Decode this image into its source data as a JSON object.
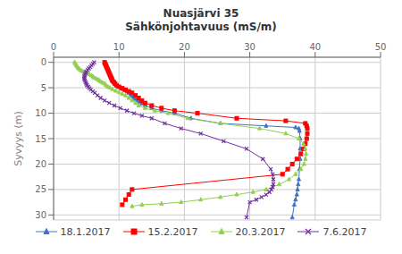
{
  "chart_data": {
    "type": "line",
    "title": "Nuasjärvi 35\nSähkönjohtavuus (mS/m)",
    "y_label": "Syvyys (m)",
    "xlim": [
      0,
      50
    ],
    "ylim": [
      31,
      -1
    ],
    "xticks": [
      0,
      10,
      20,
      30,
      40,
      50
    ],
    "yticks": [
      0,
      5,
      10,
      15,
      20,
      25,
      30
    ],
    "grid": true,
    "legend": "bottom",
    "series": [
      {
        "name": "18.1.2017",
        "color": "#4472C4",
        "marker": "triangle",
        "x": [
          7.8,
          7.9,
          8.0,
          8.1,
          8.2,
          8.3,
          8.4,
          8.5,
          8.6,
          8.7,
          8.8,
          8.9,
          9.0,
          9.2,
          9.4,
          9.6,
          9.9,
          10.3,
          10.7,
          11.2,
          11.5,
          11.8,
          12.0,
          12.2,
          12.5,
          12.8,
          13.1,
          13.5,
          14.0,
          15.0,
          16.5,
          18.5,
          21.0,
          25.5,
          32.5,
          37.0,
          37.5,
          37.6,
          37.7,
          37.7,
          37.7,
          37.6,
          37.5,
          37.4,
          37.3,
          37.2,
          37.0,
          36.8,
          36.5
        ],
        "values": [
          0.0,
          0.3,
          0.6,
          0.9,
          1.2,
          1.5,
          1.8,
          2.1,
          2.4,
          2.7,
          3.0,
          3.3,
          3.6,
          3.9,
          4.2,
          4.5,
          4.8,
          5.1,
          5.4,
          5.7,
          6.0,
          6.3,
          6.6,
          6.9,
          7.2,
          7.5,
          7.8,
          8.1,
          8.5,
          9.0,
          9.5,
          10.0,
          11.0,
          12.0,
          12.5,
          12.8,
          13.0,
          13.5,
          15.0,
          17.0,
          19.0,
          21.0,
          23.0,
          24.0,
          25.0,
          26.0,
          27.0,
          28.0,
          30.5
        ]
      },
      {
        "name": "15.2.2017",
        "color": "#FF0000",
        "marker": "square",
        "x": [
          7.8,
          7.9,
          8.0,
          8.1,
          8.2,
          8.3,
          8.4,
          8.5,
          8.6,
          8.7,
          8.8,
          8.9,
          9.0,
          9.2,
          9.4,
          9.6,
          10.0,
          10.5,
          11.0,
          11.5,
          12.0,
          12.5,
          13.0,
          13.5,
          14.0,
          15.0,
          16.5,
          18.5,
          22.0,
          28.0,
          35.5,
          38.5,
          38.7,
          38.8,
          38.8,
          38.7,
          38.5,
          38.2,
          37.8,
          37.2,
          36.5,
          35.8,
          35.0,
          12.0,
          11.5,
          11.0,
          10.5
        ],
        "values": [
          0.0,
          0.3,
          0.6,
          0.9,
          1.2,
          1.5,
          1.8,
          2.1,
          2.4,
          2.7,
          3.0,
          3.3,
          3.6,
          3.9,
          4.2,
          4.5,
          4.8,
          5.1,
          5.4,
          5.7,
          6.0,
          6.5,
          7.0,
          7.5,
          8.0,
          8.5,
          9.0,
          9.5,
          10.0,
          11.0,
          11.5,
          12.0,
          12.5,
          13.0,
          14.0,
          15.0,
          16.0,
          17.0,
          18.0,
          19.0,
          20.0,
          21.0,
          22.0,
          25.0,
          26.0,
          27.0,
          28.0
        ]
      },
      {
        "name": "20.3.2017",
        "color": "#92D050",
        "marker": "triangle",
        "x": [
          3.2,
          3.3,
          3.4,
          3.5,
          3.6,
          3.7,
          3.8,
          4.0,
          4.2,
          4.5,
          4.8,
          5.2,
          5.5,
          5.8,
          6.0,
          6.2,
          6.5,
          6.8,
          7.0,
          7.2,
          7.5,
          7.8,
          8.0,
          8.3,
          8.6,
          9.0,
          9.5,
          10.0,
          10.5,
          11.0,
          11.5,
          12.0,
          12.5,
          13.0,
          14.0,
          15.5,
          17.5,
          20.5,
          25.5,
          31.5,
          35.5,
          37.5,
          38.2,
          38.5,
          38.6,
          38.5,
          38.3,
          37.8,
          37.0,
          36.0,
          34.5,
          32.5,
          30.5,
          28.0,
          25.5,
          22.5,
          19.5,
          16.5,
          13.5,
          12.0
        ],
        "values": [
          0.0,
          0.2,
          0.4,
          0.6,
          0.8,
          1.0,
          1.2,
          1.4,
          1.6,
          1.8,
          2.0,
          2.2,
          2.4,
          2.6,
          2.8,
          3.0,
          3.2,
          3.4,
          3.6,
          3.8,
          4.0,
          4.2,
          4.5,
          4.8,
          5.0,
          5.3,
          5.6,
          5.9,
          6.2,
          6.5,
          7.0,
          7.5,
          8.0,
          8.5,
          9.0,
          9.5,
          10.0,
          11.0,
          12.0,
          13.0,
          14.0,
          15.0,
          16.0,
          17.0,
          18.0,
          19.0,
          20.0,
          21.0,
          22.0,
          23.0,
          24.0,
          25.0,
          25.5,
          26.0,
          26.5,
          27.0,
          27.5,
          27.8,
          28.0,
          28.3
        ]
      },
      {
        "name": "7.6.2017",
        "color": "#7030A0",
        "marker": "x",
        "x": [
          6.2,
          6.0,
          5.8,
          5.6,
          5.4,
          5.2,
          5.0,
          4.9,
          4.8,
          4.7,
          4.7,
          4.7,
          4.8,
          4.9,
          5.0,
          5.1,
          5.3,
          5.5,
          5.7,
          6.0,
          6.3,
          6.7,
          7.2,
          7.8,
          8.5,
          9.3,
          10.2,
          11.2,
          12.3,
          13.5,
          15.0,
          17.0,
          19.5,
          22.5,
          26.0,
          29.5,
          32.0,
          33.2,
          33.5,
          33.6,
          33.6,
          33.5,
          33.3,
          33.0,
          32.5,
          31.8,
          31.0,
          30.0,
          29.5
        ],
        "values": [
          0.0,
          0.3,
          0.6,
          0.9,
          1.2,
          1.5,
          1.8,
          2.1,
          2.4,
          2.7,
          3.0,
          3.3,
          3.6,
          3.9,
          4.2,
          4.5,
          4.8,
          5.1,
          5.4,
          5.7,
          6.0,
          6.5,
          7.0,
          7.5,
          8.0,
          8.5,
          9.0,
          9.5,
          10.0,
          10.5,
          11.0,
          12.0,
          13.0,
          14.0,
          15.5,
          17.0,
          19.0,
          21.0,
          22.0,
          23.0,
          24.0,
          24.5,
          25.0,
          25.5,
          26.0,
          26.5,
          27.0,
          27.5,
          30.5
        ]
      }
    ]
  }
}
